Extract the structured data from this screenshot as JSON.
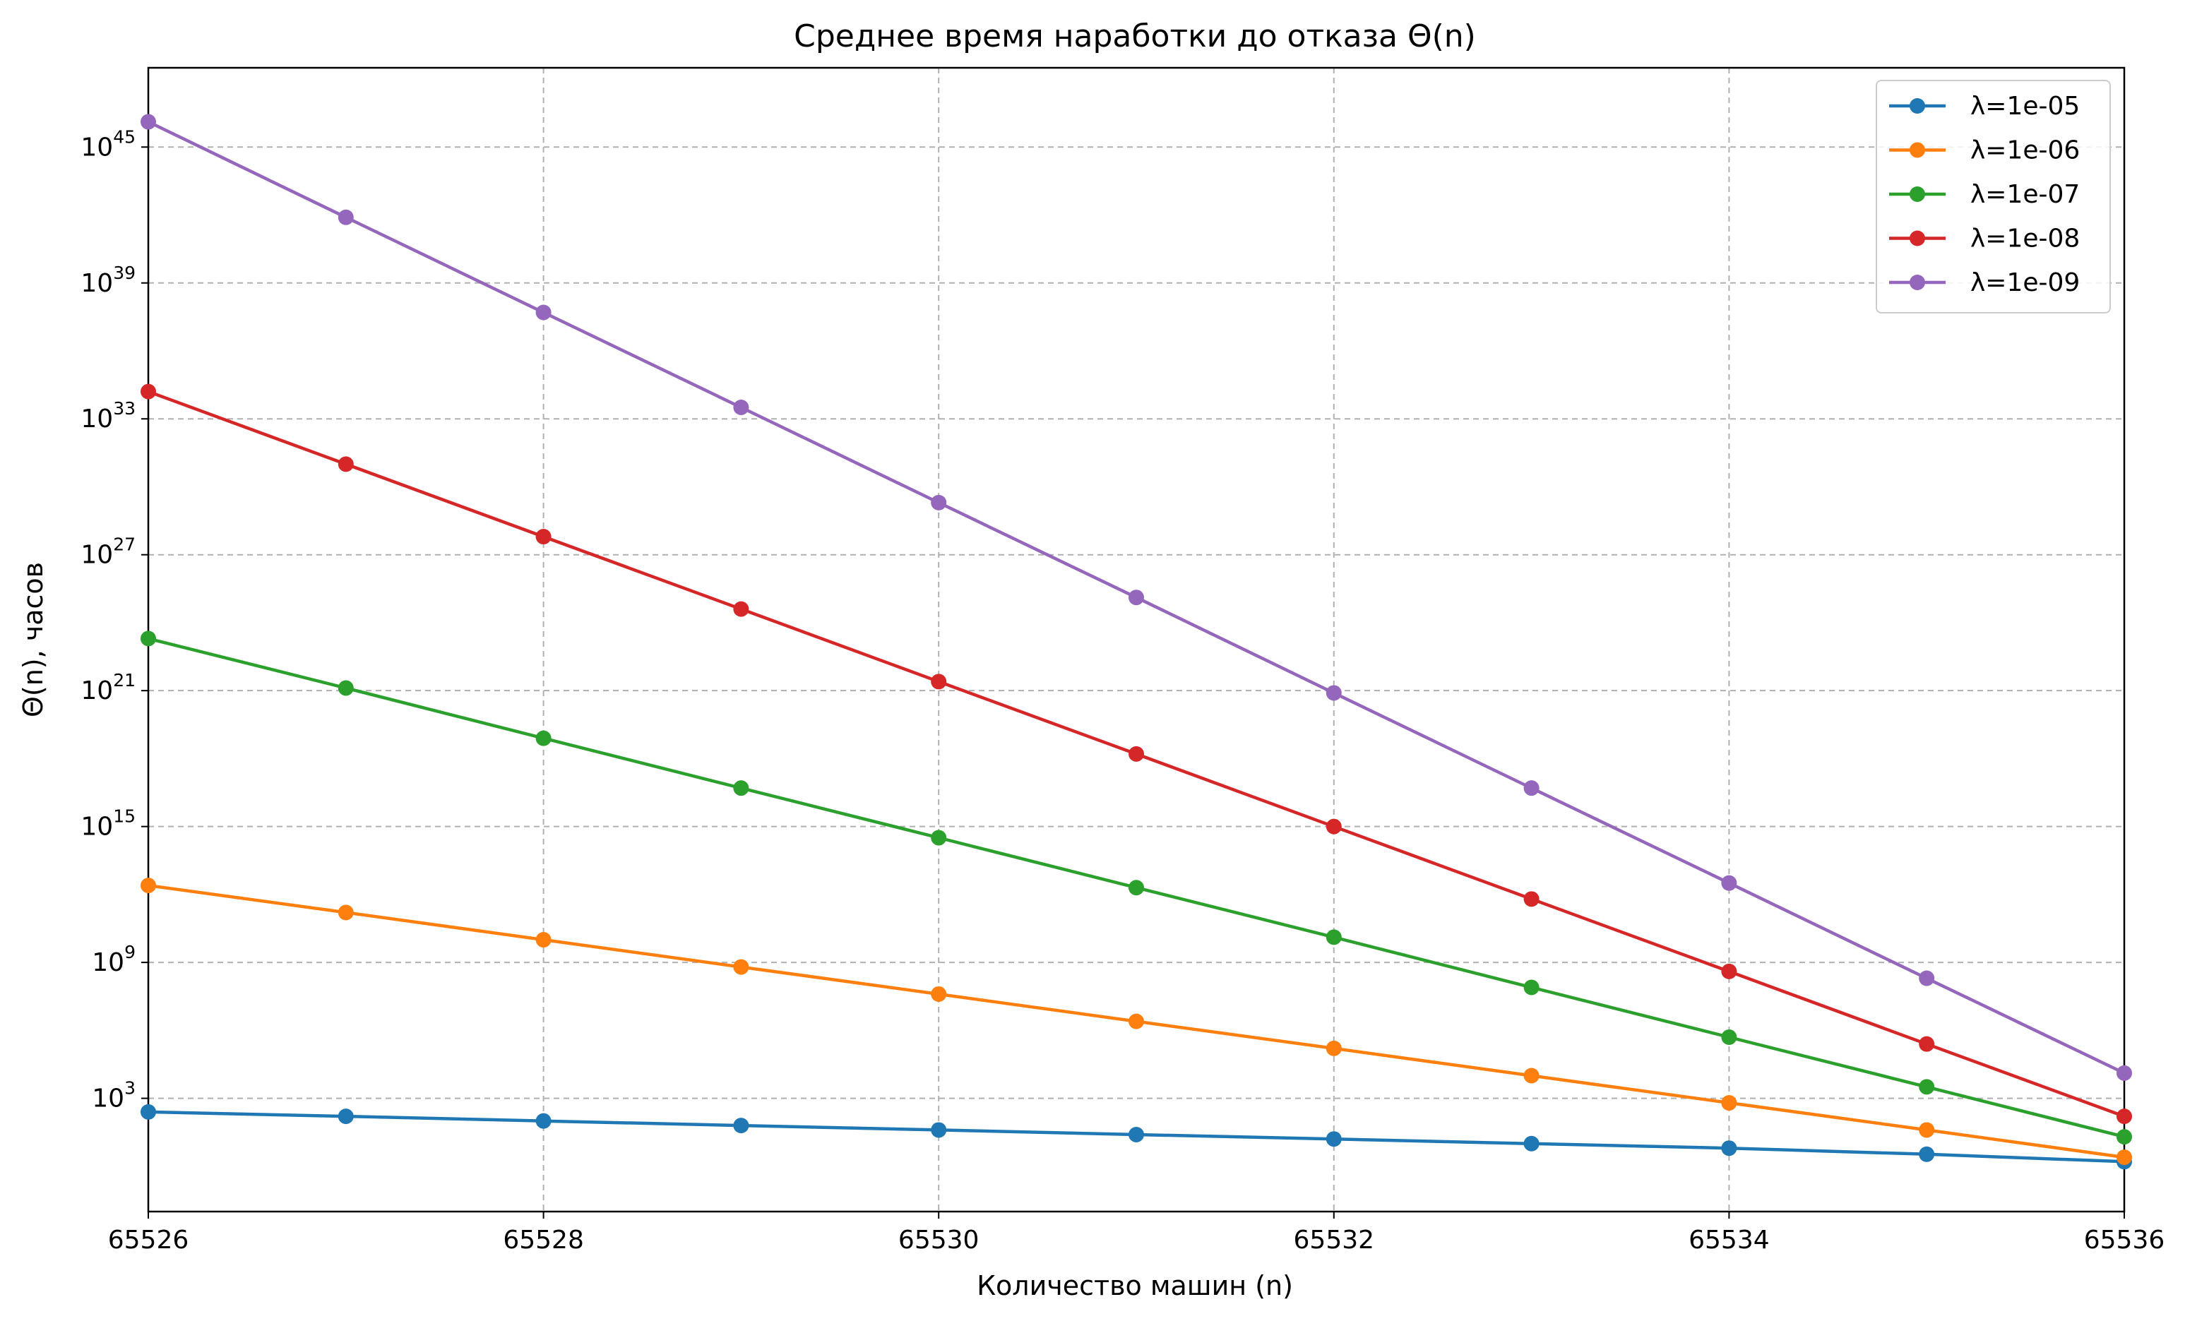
{
  "chart_data": {
    "type": "line",
    "title": "Среднее время наработки до отказа Θ(n)",
    "xlabel": "Количество машин (n)",
    "ylabel": "Θ(n), часов",
    "xlim": [
      65526,
      65536
    ],
    "ylim_log10": [
      -2,
      48.5
    ],
    "y_scale": "log",
    "x_ticks": [
      65526,
      65528,
      65530,
      65532,
      65534,
      65536
    ],
    "x_tick_labels": [
      "65526",
      "65528",
      "65530",
      "65532",
      "65534",
      "65536"
    ],
    "y_ticks": [
      {
        "base": "10",
        "exp": "3",
        "log10": 3
      },
      {
        "base": "10",
        "exp": "9",
        "log10": 9
      },
      {
        "base": "10",
        "exp": "15",
        "log10": 15
      },
      {
        "base": "10",
        "exp": "21",
        "log10": 21
      },
      {
        "base": "10",
        "exp": "27",
        "log10": 27
      },
      {
        "base": "10",
        "exp": "33",
        "log10": 33
      },
      {
        "base": "10",
        "exp": "39",
        "log10": 39
      },
      {
        "base": "10",
        "exp": "45",
        "log10": 45
      }
    ],
    "grid": true,
    "legend_position": "top-right",
    "x": [
      65526,
      65527,
      65528,
      65529,
      65530,
      65531,
      65532,
      65533,
      65534,
      65535,
      65536
    ],
    "series": [
      {
        "name": "λ=1e-05",
        "color": "#1f77b4",
        "values": [
          251.0,
          160.0,
          100.0,
          63.0,
          40.0,
          25.0,
          16.0,
          10.0,
          6.3,
          3.4,
          1.6
        ]
      },
      {
        "name": "λ=1e-06",
        "color": "#ff7f0e",
        "values": [
          2500000000000.0,
          160000000000.0,
          10000000000.0,
          630000000.0,
          40000000.0,
          2500000.0,
          160000.0,
          10000.0,
          630.0,
          40.0,
          2.5
        ]
      },
      {
        "name": "λ=1e-07",
        "color": "#2ca02c",
        "values": [
          2e+23,
          1.3e+21,
          7.9e+18,
          5e+16,
          320000000000000.0,
          2000000000000.0,
          13000000000.0,
          79000000.0,
          500000.0,
          3200.0,
          20.0
        ]
      },
      {
        "name": "λ=1e-08",
        "color": "#d62728",
        "values": [
          1.6e+34,
          1e+31,
          6.3e+27,
          4e+24,
          2.5e+21,
          1.6e+18,
          1000000000000000.0,
          630000000000.0,
          400000000.0,
          250000.0,
          160.0
        ]
      },
      {
        "name": "λ=1e-09",
        "color": "#9467bd",
        "values": [
          1.3e+46,
          7.9e+41,
          5e+37,
          3.2e+33,
          2e+29,
          1.3e+25,
          7.9e+20,
          5e+16,
          3200000000000.0,
          200000000.0,
          13000.0
        ]
      }
    ]
  }
}
